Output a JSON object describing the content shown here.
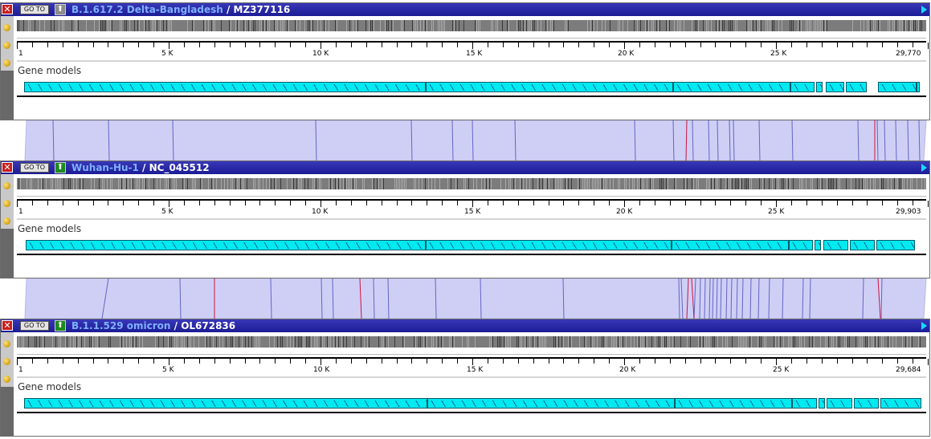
{
  "colors": {
    "titlebar": "#1c1c96",
    "genome_title": "#7fb0ff",
    "accession": "#ffffff",
    "gene": "#00eaf0",
    "alignment_band": "#cfcff5",
    "alignment_line": "#6464c8",
    "alignment_line_alt": "#d0143c"
  },
  "icons": {
    "close": "close-icon",
    "reference": "up-arrow-icon",
    "expand": "play-triangle-icon",
    "menu": "gold-dot-icon"
  },
  "panels": [
    {
      "close_label": "✕",
      "goto_label": "GO TO",
      "reference_active": false,
      "genome_name": "B.1.617.2 Delta-Bangladesh",
      "separator": " / ",
      "accession": "MZ377116",
      "track_label": "Gene models",
      "scale_ticks": [
        "1",
        "5 K",
        "10 K",
        "15 K",
        "20 K",
        "25 K",
        "29,770"
      ]
    },
    {
      "close_label": "✕",
      "goto_label": "GO TO",
      "reference_active": true,
      "genome_name": "Wuhan-Hu-1",
      "separator": " / ",
      "accession": "NC_045512",
      "track_label": "Gene models",
      "scale_ticks": [
        "1",
        "5 K",
        "10 K",
        "15 K",
        "20 K",
        "25 K",
        "29,903"
      ]
    },
    {
      "close_label": "✕",
      "goto_label": "GO TO",
      "reference_active": true,
      "genome_name": "B.1.1.529 omicron",
      "separator": " / ",
      "accession": "OL672836",
      "track_label": "Gene models",
      "scale_ticks": [
        "1",
        "5 K",
        "10 K",
        "15 K",
        "20 K",
        "25 K",
        "29,684"
      ]
    }
  ]
}
